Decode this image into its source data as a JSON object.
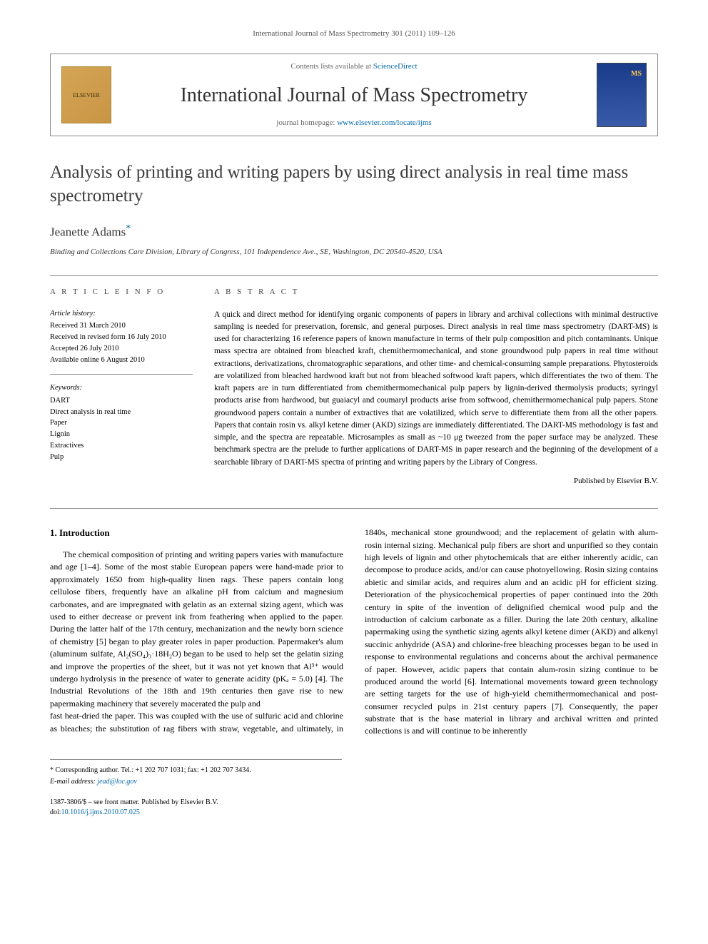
{
  "top_header": "International Journal of Mass Spectrometry 301 (2011) 109–126",
  "header": {
    "contents_prefix": "Contents lists available at ",
    "contents_link": "ScienceDirect",
    "journal_title": "International Journal of Mass Spectrometry",
    "homepage_prefix": "journal homepage: ",
    "homepage_link": "www.elsevier.com/locate/ijms",
    "elsevier_label": "ELSEVIER"
  },
  "article": {
    "title": "Analysis of printing and writing papers by using direct analysis in real time mass spectrometry",
    "author": "Jeanette Adams",
    "affiliation": "Binding and Collections Care Division, Library of Congress, 101 Independence Ave., SE, Washington, DC 20540-4520, USA"
  },
  "info": {
    "heading": "A R T I C L E   I N F O",
    "history_label": "Article history:",
    "history": [
      "Received 31 March 2010",
      "Received in revised form 16 July 2010",
      "Accepted 26 July 2010",
      "Available online 6 August 2010"
    ],
    "keywords_label": "Keywords:",
    "keywords": [
      "DART",
      "Direct analysis in real time",
      "Paper",
      "Lignin",
      "Extractives",
      "Pulp"
    ]
  },
  "abstract": {
    "heading": "A B S T R A C T",
    "text": "A quick and direct method for identifying organic components of papers in library and archival collections with minimal destructive sampling is needed for preservation, forensic, and general purposes. Direct analysis in real time mass spectrometry (DART-MS) is used for characterizing 16 reference papers of known manufacture in terms of their pulp composition and pitch contaminants. Unique mass spectra are obtained from bleached kraft, chemithermomechanical, and stone groundwood pulp papers in real time without extractions, derivatizations, chromatographic separations, and other time- and chemical-consuming sample preparations. Phytosteroids are volatilized from bleached hardwood kraft but not from bleached softwood kraft papers, which differentiates the two of them. The kraft papers are in turn differentiated from chemithermomechanical pulp papers by lignin-derived thermolysis products; syringyl products arise from hardwood, but guaiacyl and coumaryl products arise from softwood, chemithermomechanical pulp papers. Stone groundwood papers contain a number of extractives that are volatilized, which serve to differentiate them from all the other papers. Papers that contain rosin vs. alkyl ketene dimer (AKD) sizings are immediately differentiated. The DART-MS methodology is fast and simple, and the spectra are repeatable. Microsamples as small as ~10 μg tweezed from the paper surface may be analyzed. These benchmark spectra are the prelude to further applications of DART-MS in paper research and the beginning of the development of a searchable library of DART-MS spectra of printing and writing papers by the Library of Congress.",
    "published_by": "Published by Elsevier B.V."
  },
  "intro": {
    "heading": "1. Introduction",
    "col1": "The chemical composition of printing and writing papers varies with manufacture and age [1–4]. Some of the most stable European papers were hand-made prior to approximately 1650 from high-quality linen rags. These papers contain long cellulose fibers, frequently have an alkaline pH from calcium and magnesium carbonates, and are impregnated with gelatin as an external sizing agent, which was used to either decrease or prevent ink from feathering when applied to the paper. During the latter half of the 17th century, mechanization and the newly born science of chemistry [5] began to play greater roles in paper production. Papermaker's alum (aluminum sulfate, Al₂(SO₄)₃·18H₂O) began to be used to help set the gelatin sizing and improve the properties of the sheet, but it was not yet known that Al³⁺ would undergo hydrolysis in the presence of water to generate acidity (pKₐ = 5.0) [4]. The Industrial Revolutions of the 18th and 19th centuries then gave rise to new papermaking machinery that severely macerated the pulp and",
    "col2": "fast heat-dried the paper. This was coupled with the use of sulfuric acid and chlorine as bleaches; the substitution of rag fibers with straw, vegetable, and ultimately, in 1840s, mechanical stone groundwood; and the replacement of gelatin with alum-rosin internal sizing. Mechanical pulp fibers are short and unpurified so they contain high levels of lignin and other phytochemicals that are either inherently acidic, can decompose to produce acids, and/or can cause photoyellowing. Rosin sizing contains abietic and similar acids, and requires alum and an acidic pH for efficient sizing. Deterioration of the physicochemical properties of paper continued into the 20th century in spite of the invention of delignified chemical wood pulp and the introduction of calcium carbonate as a filler. During the late 20th century, alkaline papermaking using the synthetic sizing agents alkyl ketene dimer (AKD) and alkenyl succinic anhydride (ASA) and chlorine-free bleaching processes began to be used in response to environmental regulations and concerns about the archival permanence of paper. However, acidic papers that contain alum-rosin sizing continue to be produced around the world [6]. International movements toward green technology are setting targets for the use of high-yield chemithermomechanical and post-consumer recycled pulps in 21st century papers [7]. Consequently, the paper substrate that is the base material in library and archival written and printed collections is and will continue to be inherently"
  },
  "footnote": {
    "corresponding": "* Corresponding author. Tel.: +1 202 707 1031; fax: +1 202 707 3434.",
    "email_label": "E-mail address:",
    "email": "jead@loc.gov"
  },
  "footer": {
    "issn": "1387-3806/$ – see front matter. Published by Elsevier B.V.",
    "doi_prefix": "doi:",
    "doi": "10.1016/j.ijms.2010.07.025"
  },
  "refs": {
    "r1": "[1–4]",
    "r5": "[5]",
    "r4": "[4]",
    "r6": "[6]",
    "r7": "[7]"
  },
  "colors": {
    "link": "#0066aa",
    "text": "#000000",
    "border": "#888888",
    "heading": "#3a3a3a"
  }
}
